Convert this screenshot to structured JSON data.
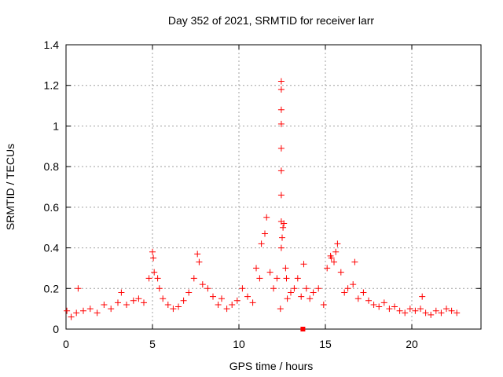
{
  "chart_data": {
    "type": "scatter",
    "title": "Day 352 of 2021, SRMTID for receiver larr",
    "xlabel": "GPS time / hours",
    "ylabel": "SRMTID / TECUs",
    "xlim": [
      0,
      24
    ],
    "ylim": [
      0,
      1.4
    ],
    "xticks": [
      0,
      5,
      10,
      15,
      20
    ],
    "xtick_labels": [
      "0",
      "5",
      "10",
      "15",
      "20"
    ],
    "yticks": [
      0,
      0.2,
      0.4,
      0.6,
      0.8,
      1.0,
      1.2,
      1.4
    ],
    "ytick_labels": [
      "0",
      "0.2",
      "0.4",
      "0.6",
      "0.8",
      "1",
      "1.2",
      "1.4"
    ],
    "grid": true,
    "marker": "+",
    "series": [
      {
        "name": "SRMTID",
        "color": "#ff0000",
        "x": [
          0.05,
          0.3,
          0.6,
          0.7,
          1.0,
          1.4,
          1.8,
          2.2,
          2.6,
          3.0,
          3.2,
          3.5,
          3.9,
          4.2,
          4.5,
          4.8,
          5.0,
          5.05,
          5.1,
          5.3,
          5.4,
          5.6,
          5.9,
          6.2,
          6.5,
          6.8,
          7.1,
          7.4,
          7.6,
          7.7,
          7.9,
          8.2,
          8.5,
          8.8,
          9.0,
          9.3,
          9.6,
          9.9,
          10.2,
          10.5,
          10.8,
          11.0,
          11.2,
          11.3,
          11.5,
          11.6,
          11.8,
          12.0,
          12.2,
          12.4,
          12.45,
          12.45,
          12.45,
          12.45,
          12.45,
          12.45,
          12.45,
          12.45,
          12.45,
          12.5,
          12.55,
          12.6,
          12.7,
          12.75,
          12.8,
          13.0,
          13.2,
          13.4,
          13.6,
          13.75,
          13.9,
          14.1,
          14.3,
          14.6,
          14.9,
          15.1,
          15.3,
          15.35,
          15.5,
          15.6,
          15.7,
          15.9,
          16.1,
          16.3,
          16.6,
          16.7,
          16.9,
          17.2,
          17.5,
          17.8,
          18.1,
          18.4,
          18.7,
          19.0,
          19.3,
          19.6,
          19.9,
          20.2,
          20.5,
          20.6,
          20.8,
          21.1,
          21.4,
          21.7,
          22.0,
          22.3,
          22.6
        ],
        "values": [
          0.09,
          0.06,
          0.08,
          0.2,
          0.09,
          0.1,
          0.08,
          0.12,
          0.1,
          0.13,
          0.18,
          0.12,
          0.14,
          0.15,
          0.13,
          0.25,
          0.38,
          0.35,
          0.28,
          0.25,
          0.2,
          0.15,
          0.12,
          0.1,
          0.11,
          0.14,
          0.18,
          0.25,
          0.37,
          0.33,
          0.22,
          0.2,
          0.16,
          0.12,
          0.15,
          0.1,
          0.12,
          0.14,
          0.2,
          0.16,
          0.13,
          0.3,
          0.25,
          0.42,
          0.47,
          0.55,
          0.28,
          0.2,
          0.25,
          0.1,
          1.22,
          1.18,
          1.08,
          1.01,
          0.89,
          0.78,
          0.66,
          0.53,
          0.4,
          0.45,
          0.5,
          0.52,
          0.3,
          0.25,
          0.15,
          0.18,
          0.2,
          0.25,
          0.16,
          0.32,
          0.2,
          0.15,
          0.18,
          0.2,
          0.12,
          0.3,
          0.36,
          0.35,
          0.33,
          0.38,
          0.42,
          0.28,
          0.18,
          0.2,
          0.22,
          0.33,
          0.15,
          0.18,
          0.14,
          0.12,
          0.11,
          0.13,
          0.1,
          0.11,
          0.09,
          0.08,
          0.1,
          0.09,
          0.1,
          0.16,
          0.08,
          0.07,
          0.09,
          0.08,
          0.1,
          0.09,
          0.08
        ]
      },
      {
        "name": "outlier",
        "color": "#ff0000",
        "marker": "square",
        "x": [
          13.7
        ],
        "values": [
          0.0
        ]
      }
    ]
  }
}
